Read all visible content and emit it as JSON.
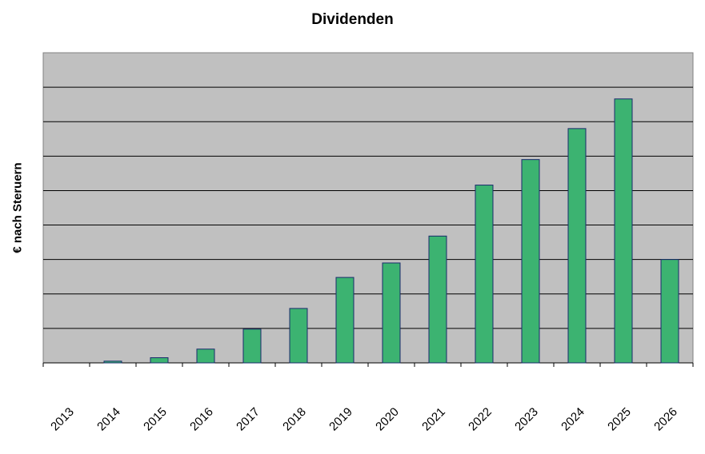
{
  "chart_data": {
    "type": "bar",
    "title": "Dividenden",
    "xlabel": "",
    "ylabel": "€ nach Steruern",
    "categories": [
      "2013",
      "2014",
      "2015",
      "2016",
      "2017",
      "2018",
      "2019",
      "2020",
      "2021",
      "2022",
      "2023",
      "2024",
      "2025",
      "2026"
    ],
    "values": [
      0,
      0.05,
      0.15,
      0.4,
      0.98,
      1.58,
      2.48,
      2.9,
      3.68,
      5.16,
      5.9,
      6.8,
      7.66,
      3.0
    ],
    "ylim": [
      0,
      9
    ],
    "grid": true,
    "legend": "none",
    "colors": {
      "bar": "#3cb371",
      "bar_edge": "#1a2a6c",
      "plot_bg": "#c0c0c0",
      "grid": "#000000"
    }
  }
}
